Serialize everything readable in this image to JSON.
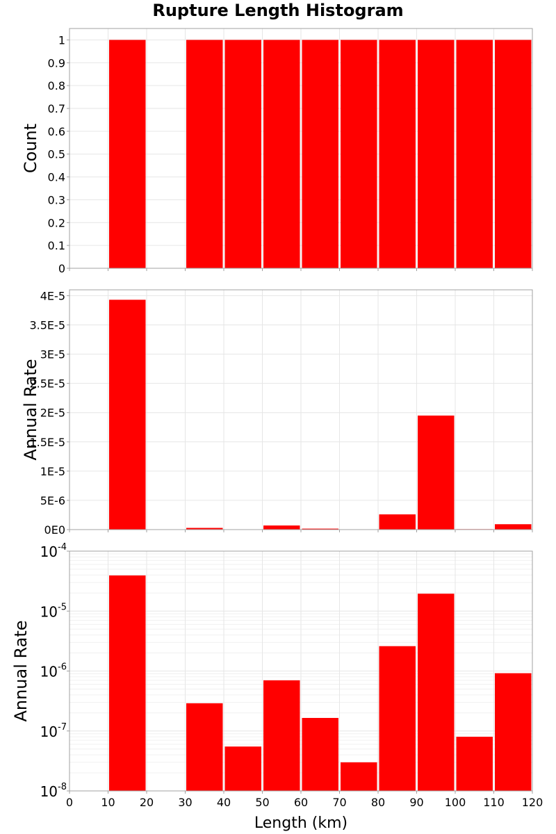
{
  "chart_data": {
    "title": "Rupture Length Histogram",
    "xlabel": "Length (km)",
    "xlim": [
      0,
      120
    ],
    "x_ticks": [
      "0",
      "10",
      "20",
      "30",
      "40",
      "50",
      "60",
      "70",
      "80",
      "90",
      "100",
      "110",
      "120"
    ],
    "bin_width": 10,
    "bar_color": "#ff0000",
    "panels": [
      {
        "type": "bar",
        "ylabel": "Count",
        "scale": "linear",
        "ylim": [
          0,
          1.05
        ],
        "y_ticks": [
          {
            "v": 0,
            "label": "0"
          },
          {
            "v": 0.1,
            "label": "0.1"
          },
          {
            "v": 0.2,
            "label": "0.2"
          },
          {
            "v": 0.3,
            "label": "0.3"
          },
          {
            "v": 0.4,
            "label": "0.4"
          },
          {
            "v": 0.5,
            "label": "0.5"
          },
          {
            "v": 0.6,
            "label": "0.6"
          },
          {
            "v": 0.7,
            "label": "0.7"
          },
          {
            "v": 0.8,
            "label": "0.8"
          },
          {
            "v": 0.9,
            "label": "0.9"
          },
          {
            "v": 1,
            "label": "1"
          }
        ],
        "bars": [
          {
            "x0": 10,
            "value": 1
          },
          {
            "x0": 30,
            "value": 1
          },
          {
            "x0": 40,
            "value": 1
          },
          {
            "x0": 50,
            "value": 1
          },
          {
            "x0": 60,
            "value": 1
          },
          {
            "x0": 70,
            "value": 1
          },
          {
            "x0": 80,
            "value": 1
          },
          {
            "x0": 90,
            "value": 1
          },
          {
            "x0": 100,
            "value": 1
          },
          {
            "x0": 110,
            "value": 1
          }
        ]
      },
      {
        "type": "bar",
        "ylabel": "Annual Rate",
        "scale": "linear",
        "ylim": [
          0,
          4.1e-05
        ],
        "y_ticks": [
          {
            "v": 0,
            "label": "0E0"
          },
          {
            "v": 5e-06,
            "label": "5E-6"
          },
          {
            "v": 1e-05,
            "label": "1E-5"
          },
          {
            "v": 1.5e-05,
            "label": "1.5E-5"
          },
          {
            "v": 2e-05,
            "label": "2E-5"
          },
          {
            "v": 2.5e-05,
            "label": "2.5E-5"
          },
          {
            "v": 3e-05,
            "label": "3E-5"
          },
          {
            "v": 3.5e-05,
            "label": "3.5E-5"
          },
          {
            "v": 4e-05,
            "label": "4E-5"
          }
        ],
        "bars": [
          {
            "x0": 10,
            "value": 3.93e-05
          },
          {
            "x0": 30,
            "value": 2.9e-07
          },
          {
            "x0": 40,
            "value": 5.5e-08
          },
          {
            "x0": 50,
            "value": 7e-07
          },
          {
            "x0": 60,
            "value": 1.65e-07
          },
          {
            "x0": 70,
            "value": 3e-08
          },
          {
            "x0": 80,
            "value": 2.6e-06
          },
          {
            "x0": 90,
            "value": 1.95e-05
          },
          {
            "x0": 100,
            "value": 8e-08
          },
          {
            "x0": 110,
            "value": 9.2e-07
          }
        ]
      },
      {
        "type": "bar",
        "ylabel": "Annual Rate",
        "scale": "log",
        "ylim": [
          1e-08,
          0.0001
        ],
        "y_ticks": [
          {
            "v": 1e-08,
            "base": "10",
            "exp": "-8"
          },
          {
            "v": 1e-07,
            "base": "10",
            "exp": "-7"
          },
          {
            "v": 1e-06,
            "base": "10",
            "exp": "-6"
          },
          {
            "v": 1e-05,
            "base": "10",
            "exp": "-5"
          },
          {
            "v": 0.0001,
            "base": "10",
            "exp": "-4"
          }
        ],
        "bars": [
          {
            "x0": 10,
            "value": 3.93e-05
          },
          {
            "x0": 30,
            "value": 2.9e-07
          },
          {
            "x0": 40,
            "value": 5.5e-08
          },
          {
            "x0": 50,
            "value": 7e-07
          },
          {
            "x0": 60,
            "value": 1.65e-07
          },
          {
            "x0": 70,
            "value": 3e-08
          },
          {
            "x0": 80,
            "value": 2.6e-06
          },
          {
            "x0": 90,
            "value": 1.95e-05
          },
          {
            "x0": 100,
            "value": 8e-08
          },
          {
            "x0": 110,
            "value": 9.2e-07
          }
        ]
      }
    ]
  }
}
